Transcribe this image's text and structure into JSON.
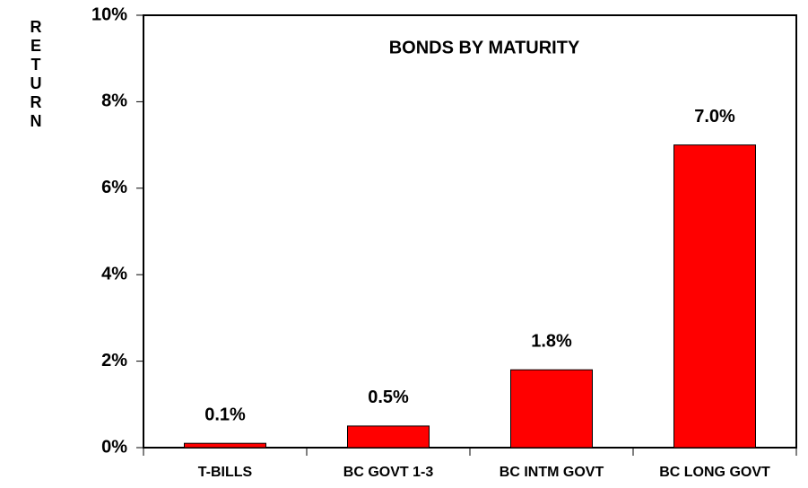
{
  "chart_data": {
    "type": "bar",
    "title": "BONDS BY MATURITY",
    "y_label": "RETURN",
    "categories": [
      "T-BILLS",
      "BC GOVT 1-3",
      "BC INTM GOVT",
      "BC LONG GOVT"
    ],
    "values": [
      0.1,
      0.5,
      1.8,
      7.0
    ],
    "value_labels": [
      "0.1%",
      "0.5%",
      "1.8%",
      "7.0%"
    ],
    "color": "#ff0000",
    "ylim": [
      0,
      10
    ],
    "yticks": [
      {
        "value": 0,
        "label": "0%"
      },
      {
        "value": 2,
        "label": "2%"
      },
      {
        "value": 4,
        "label": "4%"
      },
      {
        "value": 6,
        "label": "6%"
      },
      {
        "value": 8,
        "label": "8%"
      },
      {
        "value": 10,
        "label": "10%"
      }
    ]
  }
}
